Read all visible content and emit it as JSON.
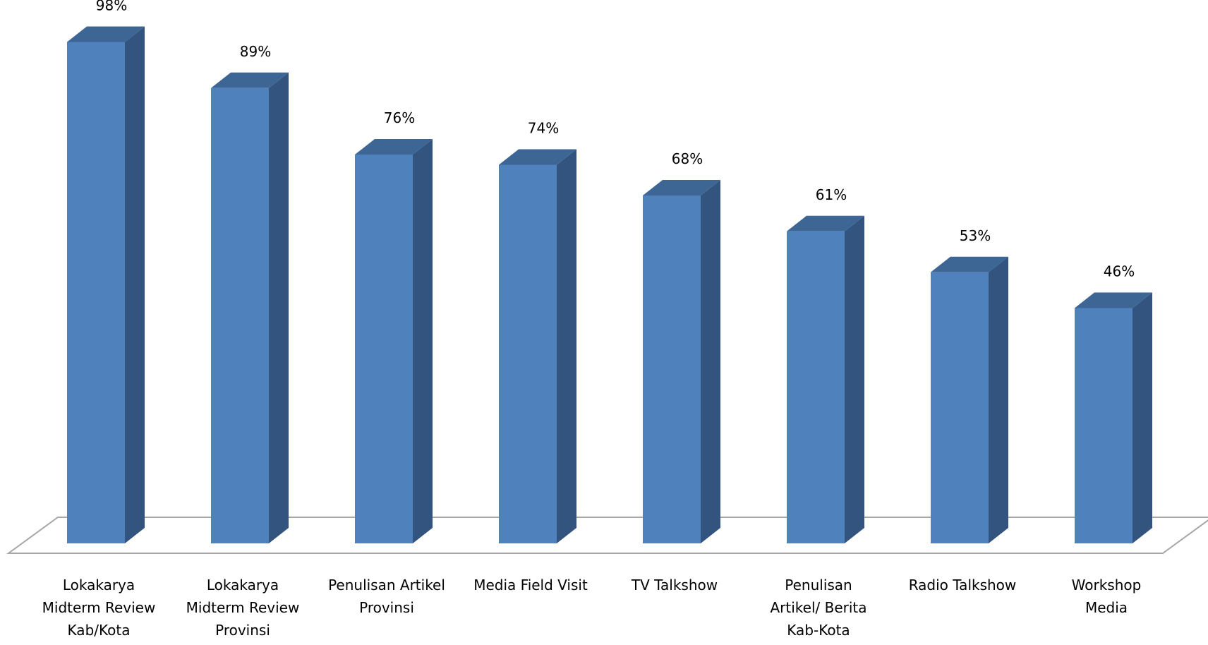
{
  "chart_data": {
    "type": "bar",
    "style": "3d-column",
    "categories": [
      [
        "Lokakarya",
        "Midterm Review",
        "Kab/Kota"
      ],
      [
        "Lokakarya",
        "Midterm Review",
        "Provinsi"
      ],
      [
        "Penulisan Artikel",
        "Provinsi"
      ],
      [
        "Media Field Visit"
      ],
      [
        "TV Talkshow"
      ],
      [
        "Penulisan",
        "Artikel/ Berita",
        "Kab-Kota"
      ],
      [
        "Radio Talkshow"
      ],
      [
        "Workshop",
        "Media"
      ]
    ],
    "values": [
      98,
      89,
      76,
      74,
      68,
      61,
      53,
      46
    ],
    "data_labels": [
      "98%",
      "89%",
      "76%",
      "74%",
      "68%",
      "61%",
      "53%",
      "46%"
    ],
    "title": "",
    "xlabel": "",
    "ylabel": "",
    "ylim": [
      0,
      100
    ],
    "grid": false,
    "legend": "none",
    "colors": {
      "bar_front": "#4F81BD",
      "bar_side": "#32547E",
      "bar_top": "#3E6695",
      "floor_line": "#A6A6A6"
    }
  }
}
